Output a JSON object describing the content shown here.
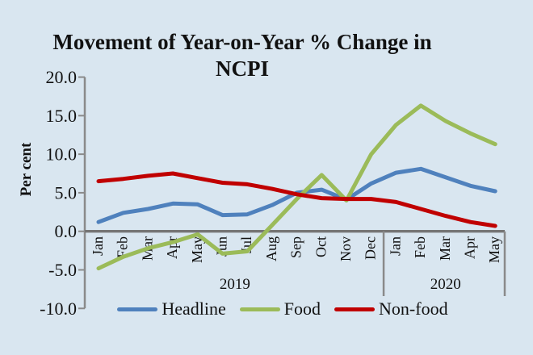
{
  "page": {
    "background": "#d9e6f0",
    "text_color": "#111111"
  },
  "title": {
    "line1": "Movement of Year-on-Year % Change in",
    "line2": "NCPI"
  },
  "chart_data": {
    "type": "line",
    "title": "Movement of Year-on-Year % Change in NCPI",
    "xlabel": "",
    "ylabel": "Per cent",
    "ylim": [
      -10.0,
      20.0
    ],
    "yticks": [
      20.0,
      15.0,
      10.0,
      5.0,
      0.0,
      -5.0,
      -10.0
    ],
    "ytick_labels": [
      "20.0",
      "15.0",
      "10.0",
      "5.0",
      "0.0",
      "-5.0",
      "-10.0"
    ],
    "categories": [
      "Jan",
      "Feb",
      "Mar",
      "Apr",
      "May",
      "Jun",
      "Jul",
      "Aug",
      "Sep",
      "Oct",
      "Nov",
      "Dec",
      "Jan",
      "Feb",
      "Mar",
      "Apr",
      "May"
    ],
    "year_groups": [
      {
        "label": "2019",
        "start": 0,
        "end": 11
      },
      {
        "label": "2020",
        "start": 12,
        "end": 16
      }
    ],
    "series": [
      {
        "name": "Headline",
        "color": "#4F81BD",
        "values": [
          1.2,
          2.4,
          2.9,
          3.6,
          3.5,
          2.1,
          2.2,
          3.4,
          5.0,
          5.4,
          4.1,
          6.2,
          7.6,
          8.1,
          7.0,
          5.9,
          5.2
        ]
      },
      {
        "name": "Food",
        "color": "#9BBB59",
        "values": [
          -4.8,
          -3.3,
          -2.2,
          -1.4,
          -0.4,
          -2.9,
          -2.6,
          0.8,
          4.2,
          7.3,
          4.0,
          10.0,
          13.8,
          16.3,
          14.3,
          12.7,
          11.3
        ]
      },
      {
        "name": "Non-food",
        "color": "#C00000",
        "values": [
          6.5,
          6.8,
          7.2,
          7.5,
          6.9,
          6.3,
          6.1,
          5.5,
          4.8,
          4.3,
          4.2,
          4.2,
          3.8,
          2.9,
          2.0,
          1.2,
          0.7
        ]
      }
    ],
    "axis_color": "#8a8a8a",
    "zero_axis_color": "#757575",
    "grid": false,
    "legend_position": "bottom"
  }
}
